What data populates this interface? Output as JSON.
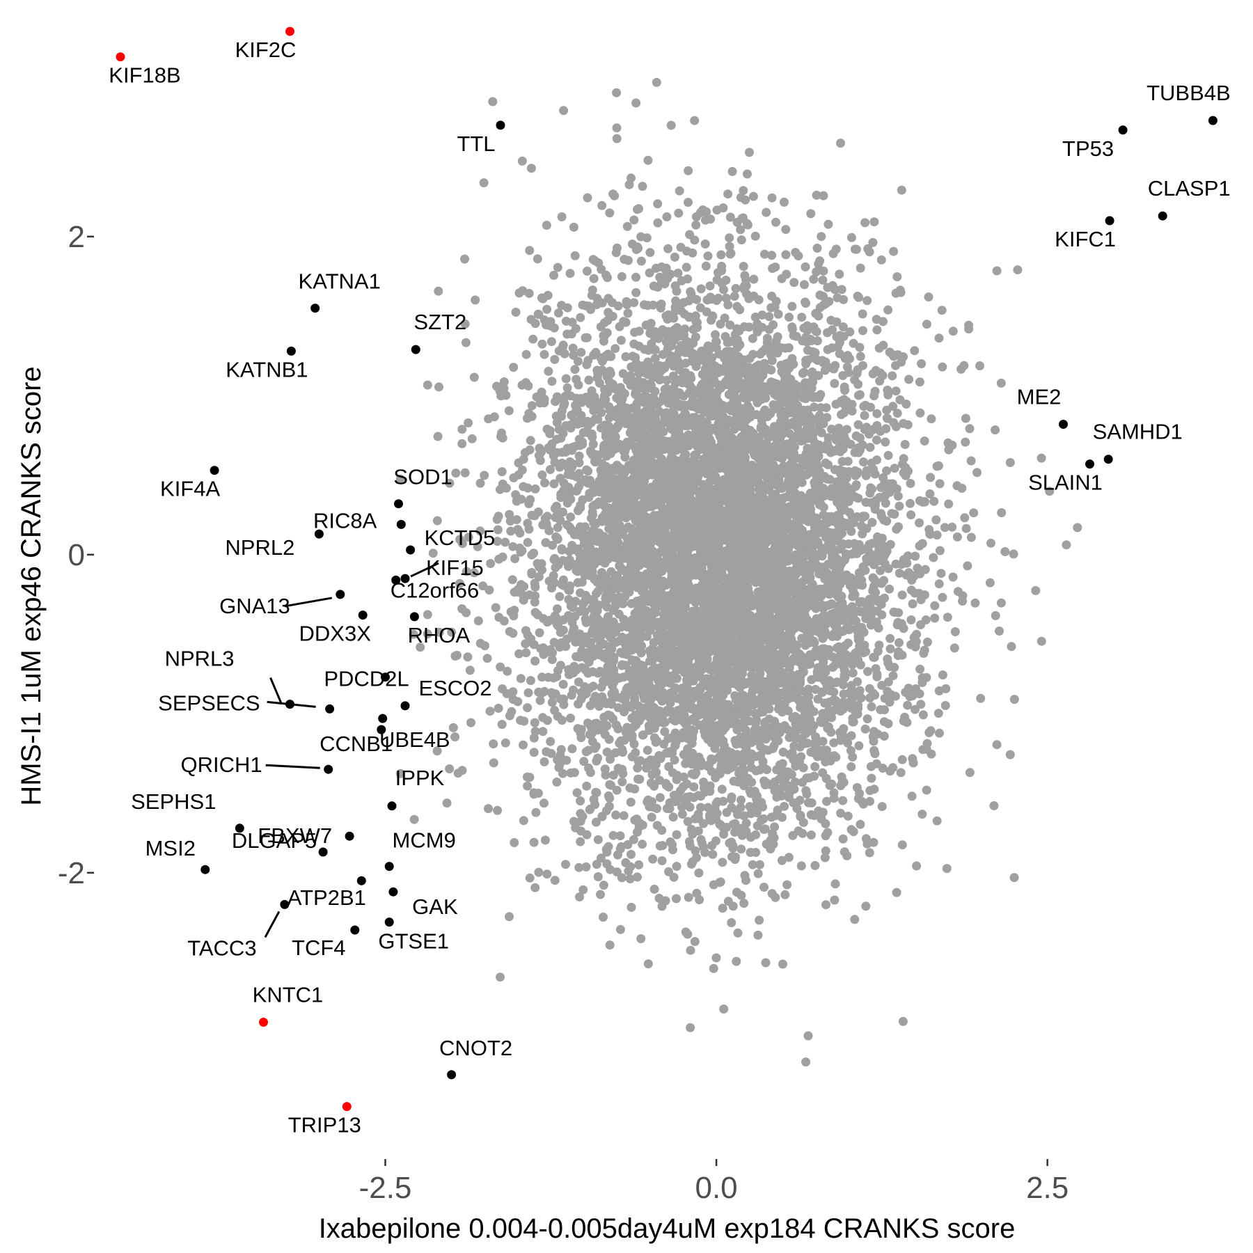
{
  "chart_data": {
    "type": "scatter",
    "xlabel": "Ixabepilone 0.004-0.005day4uM exp184 CRANKS score",
    "ylabel": "HMS-I1 1uM exp46 CRANKS score",
    "xlim": [
      -4.7,
      4.0
    ],
    "ylim": [
      -3.8,
      3.4
    ],
    "x_ticks": [
      -2.5,
      0.0,
      2.5
    ],
    "x_tick_labels": [
      "-2.5",
      "0.0",
      "2.5"
    ],
    "y_ticks": [
      -2,
      0,
      2
    ],
    "y_tick_labels": [
      "-2",
      "0",
      "2"
    ],
    "grid": false,
    "background_point_color": "#a0a0a0",
    "highlight_color": "#000000",
    "top_hit_color": "#ff0000",
    "background_cloud": {
      "count": 7000,
      "center": [
        0.0,
        0.0
      ],
      "sd": [
        0.72,
        0.88
      ]
    },
    "labeled_points": [
      {
        "label": "KIF18B",
        "x": -4.5,
        "y": 3.13,
        "color": "#ff0000"
      },
      {
        "label": "KIF2C",
        "x": -3.22,
        "y": 3.29,
        "color": "#ff0000"
      },
      {
        "label": "TTL",
        "x": -1.63,
        "y": 2.7,
        "color": "#000000"
      },
      {
        "label": "TUBB4B",
        "x": 3.75,
        "y": 2.73,
        "color": "#000000"
      },
      {
        "label": "TP53",
        "x": 3.07,
        "y": 2.67,
        "color": "#000000"
      },
      {
        "label": "CLASP1",
        "x": 3.37,
        "y": 2.13,
        "color": "#000000"
      },
      {
        "label": "KIFC1",
        "x": 2.97,
        "y": 2.1,
        "color": "#000000"
      },
      {
        "label": "KATNA1",
        "x": -3.03,
        "y": 1.55,
        "color": "#000000"
      },
      {
        "label": "KATNB1",
        "x": -3.21,
        "y": 1.28,
        "color": "#000000"
      },
      {
        "label": "SZT2",
        "x": -2.27,
        "y": 1.29,
        "color": "#000000"
      },
      {
        "label": "ME2",
        "x": 2.62,
        "y": 0.82,
        "color": "#000000"
      },
      {
        "label": "SAMHD1",
        "x": 2.96,
        "y": 0.6,
        "color": "#000000"
      },
      {
        "label": "SLAIN1",
        "x": 2.82,
        "y": 0.57,
        "color": "#000000"
      },
      {
        "label": "KIF4A",
        "x": -3.79,
        "y": 0.53,
        "color": "#000000"
      },
      {
        "label": "SOD1",
        "x": -2.4,
        "y": 0.32,
        "color": "#000000"
      },
      {
        "label": "RIC8A",
        "x": -2.38,
        "y": 0.19,
        "color": "#000000"
      },
      {
        "label": "NPRL2",
        "x": -3.0,
        "y": 0.13,
        "color": "#000000"
      },
      {
        "label": "KCTD5",
        "x": -2.31,
        "y": 0.03,
        "color": "#000000"
      },
      {
        "label": "KIF15",
        "x": -2.35,
        "y": -0.15,
        "color": "#000000"
      },
      {
        "label": "C12orf66",
        "x": -2.42,
        "y": -0.16,
        "color": "#000000"
      },
      {
        "label": "GNA13",
        "x": -2.84,
        "y": -0.25,
        "color": "#000000"
      },
      {
        "label": "DDX3X",
        "x": -2.67,
        "y": -0.38,
        "color": "#000000"
      },
      {
        "label": "RHOA",
        "x": -2.28,
        "y": -0.39,
        "color": "#000000"
      },
      {
        "label": "PDCD2L",
        "x": -2.5,
        "y": -0.77,
        "color": "#000000"
      },
      {
        "label": "ESCO2",
        "x": -2.35,
        "y": -0.95,
        "color": "#000000"
      },
      {
        "label": "NPRL3",
        "x": -3.22,
        "y": -0.94,
        "color": "#000000"
      },
      {
        "label": "SEPSECS",
        "x": -2.92,
        "y": -0.97,
        "color": "#000000"
      },
      {
        "label": "CCNB1",
        "x": -2.52,
        "y": -1.03,
        "color": "#000000"
      },
      {
        "label": "UBE4B",
        "x": -2.53,
        "y": -1.1,
        "color": "#000000"
      },
      {
        "label": "QRICH1",
        "x": -2.93,
        "y": -1.35,
        "color": "#000000"
      },
      {
        "label": "IPPK",
        "x": -2.45,
        "y": -1.58,
        "color": "#000000"
      },
      {
        "label": "SEPHS1",
        "x": -3.6,
        "y": -1.72,
        "color": "#000000"
      },
      {
        "label": "FBXW7",
        "x": -2.77,
        "y": -1.77,
        "color": "#000000"
      },
      {
        "label": "DLGAP5",
        "x": -2.97,
        "y": -1.87,
        "color": "#000000"
      },
      {
        "label": "MSI2",
        "x": -3.86,
        "y": -1.98,
        "color": "#000000"
      },
      {
        "label": "MCM9",
        "x": -2.47,
        "y": -1.96,
        "color": "#000000"
      },
      {
        "label": "ATP2B1",
        "x": -2.68,
        "y": -2.05,
        "color": "#000000"
      },
      {
        "label": "GAK",
        "x": -2.44,
        "y": -2.12,
        "color": "#000000"
      },
      {
        "label": "TACC3",
        "x": -3.26,
        "y": -2.2,
        "color": "#000000"
      },
      {
        "label": "GTSE1",
        "x": -2.47,
        "y": -2.31,
        "color": "#000000"
      },
      {
        "label": "TCF4",
        "x": -2.73,
        "y": -2.36,
        "color": "#000000"
      },
      {
        "label": "KNTC1",
        "x": -3.42,
        "y": -2.94,
        "color": "#ff0000"
      },
      {
        "label": "CNOT2",
        "x": -2.0,
        "y": -3.27,
        "color": "#000000"
      },
      {
        "label": "TRIP13",
        "x": -2.79,
        "y": -3.47,
        "color": "#ff0000"
      }
    ]
  }
}
